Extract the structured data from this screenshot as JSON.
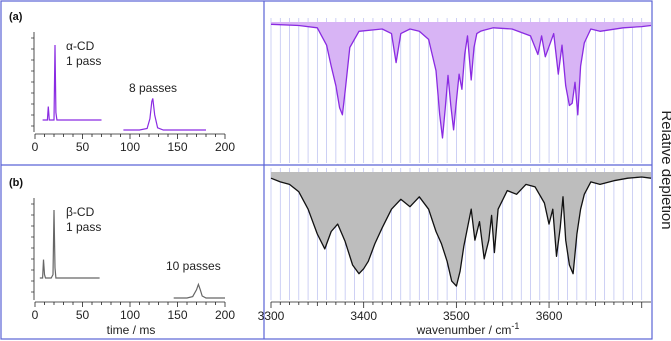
{
  "figure": {
    "side_label": "Relative depletion",
    "colors": {
      "frame": "#5b63d6",
      "grid": "#b8bdf0",
      "alpha": "#8a2be2",
      "alpha_fill": "#d8b4f5",
      "beta": "#111111",
      "beta_fill": "#bdbdbd",
      "beta_trace": "#666666"
    }
  },
  "chart_data": [
    {
      "panel": "(a)",
      "type": "line",
      "title": "",
      "xlabel": "",
      "xlim": [
        0,
        200
      ],
      "xticks": [
        "0",
        "50",
        "100",
        "150",
        "200"
      ],
      "annotations": [
        "α-CD",
        "1 pass",
        "8 passes"
      ],
      "series": [
        {
          "label": "1 pass",
          "x": [
            8,
            13,
            14,
            15,
            16,
            20,
            21,
            22,
            23,
            28,
            40,
            60,
            70
          ],
          "y": [
            0,
            0,
            0.18,
            0,
            0,
            0,
            1,
            0.1,
            0,
            0,
            0,
            0,
            0
          ]
        },
        {
          "label": "8 passes",
          "x": [
            93,
            110,
            118,
            121,
            123,
            124,
            126,
            129,
            135,
            160,
            180
          ],
          "y": [
            0,
            0,
            0.02,
            0.15,
            0.38,
            0.42,
            0.2,
            0.03,
            0,
            0,
            0
          ]
        }
      ]
    },
    {
      "panel": "(a)",
      "type": "area",
      "title": "",
      "xlabel": "",
      "xlim": [
        3300,
        3710
      ],
      "xticks": [],
      "series": [
        {
          "label": "α-CD",
          "x": [
            3300,
            3330,
            3350,
            3360,
            3365,
            3370,
            3374,
            3377,
            3380,
            3385,
            3395,
            3420,
            3430,
            3435,
            3440,
            3450,
            3460,
            3470,
            3478,
            3482,
            3485,
            3488,
            3491,
            3494,
            3497,
            3500,
            3503,
            3506,
            3509,
            3512,
            3516,
            3519,
            3522,
            3526,
            3530,
            3540,
            3560,
            3580,
            3588,
            3592,
            3596,
            3605,
            3610,
            3614,
            3618,
            3622,
            3625,
            3628,
            3631,
            3634,
            3638,
            3645,
            3655,
            3680,
            3700,
            3710
          ],
          "y": [
            0.02,
            0.03,
            0.05,
            0.2,
            0.38,
            0.55,
            0.74,
            0.8,
            0.6,
            0.22,
            0.08,
            0.06,
            0.1,
            0.35,
            0.1,
            0.06,
            0.08,
            0.15,
            0.42,
            0.8,
            1.0,
            0.75,
            0.46,
            0.72,
            0.93,
            0.68,
            0.45,
            0.58,
            0.28,
            0.12,
            0.5,
            0.22,
            0.1,
            0.08,
            0.07,
            0.05,
            0.06,
            0.12,
            0.28,
            0.12,
            0.3,
            0.1,
            0.45,
            0.2,
            0.55,
            0.72,
            0.7,
            0.52,
            0.8,
            0.38,
            0.18,
            0.06,
            0.08,
            0.05,
            0.04,
            0.03
          ]
        }
      ]
    },
    {
      "panel": "(b)",
      "type": "line",
      "title": "",
      "xlabel": "time / ms",
      "xlim": [
        0,
        200
      ],
      "xticks": [
        "0",
        "50",
        "100",
        "150",
        "200"
      ],
      "annotations": [
        "β-CD",
        "1 pass",
        "10 passes"
      ],
      "series": [
        {
          "label": "1 pass",
          "x": [
            5,
            8,
            9,
            10,
            11,
            17,
            19,
            20,
            21,
            22,
            30,
            50,
            68
          ],
          "y": [
            0,
            0,
            0.27,
            0.05,
            0,
            0,
            0.05,
            1,
            0.15,
            0,
            0,
            0,
            0
          ]
        },
        {
          "label": "10 passes",
          "x": [
            146,
            160,
            166,
            170,
            172,
            174,
            176,
            180,
            190,
            200
          ],
          "y": [
            0,
            0,
            0.02,
            0.12,
            0.2,
            0.12,
            0.03,
            0,
            0,
            0
          ]
        }
      ]
    },
    {
      "panel": "(b)",
      "type": "area",
      "title": "",
      "xlabel": "wavenumber / cm-1",
      "xlim": [
        3300,
        3710
      ],
      "xticks": [
        "3300",
        "3400",
        "3500",
        "3600"
      ],
      "series": [
        {
          "label": "β-CD",
          "x": [
            3300,
            3310,
            3320,
            3330,
            3340,
            3350,
            3358,
            3365,
            3372,
            3380,
            3388,
            3395,
            3400,
            3405,
            3412,
            3420,
            3430,
            3440,
            3450,
            3460,
            3470,
            3478,
            3484,
            3490,
            3495,
            3500,
            3504,
            3508,
            3512,
            3516,
            3520,
            3525,
            3530,
            3535,
            3538,
            3541,
            3545,
            3555,
            3565,
            3575,
            3585,
            3595,
            3600,
            3604,
            3608,
            3612,
            3615,
            3618,
            3622,
            3626,
            3630,
            3634,
            3638,
            3645,
            3655,
            3670,
            3685,
            3700,
            3710
          ],
          "y": [
            0.05,
            0.08,
            0.1,
            0.16,
            0.3,
            0.5,
            0.62,
            0.48,
            0.42,
            0.56,
            0.75,
            0.82,
            0.78,
            0.72,
            0.58,
            0.45,
            0.3,
            0.22,
            0.28,
            0.2,
            0.3,
            0.48,
            0.58,
            0.72,
            0.88,
            0.92,
            0.8,
            0.6,
            0.45,
            0.3,
            0.55,
            0.4,
            0.7,
            0.55,
            0.35,
            0.65,
            0.3,
            0.15,
            0.18,
            0.1,
            0.12,
            0.25,
            0.42,
            0.3,
            0.68,
            0.45,
            0.2,
            0.55,
            0.75,
            0.82,
            0.5,
            0.3,
            0.18,
            0.08,
            0.1,
            0.07,
            0.05,
            0.04,
            0.05
          ]
        }
      ]
    }
  ],
  "labels": {
    "panel_a": "(a)",
    "panel_b": "(b)",
    "a_name": "α-CD",
    "a_pass1": "1 pass",
    "a_passN": "8 passes",
    "b_name": "β-CD",
    "b_pass1": "1 pass",
    "b_passN": "10 passes",
    "time_label": "time / ms",
    "wn_label": "wavenumber / cm",
    "wn_sup": "-1"
  }
}
